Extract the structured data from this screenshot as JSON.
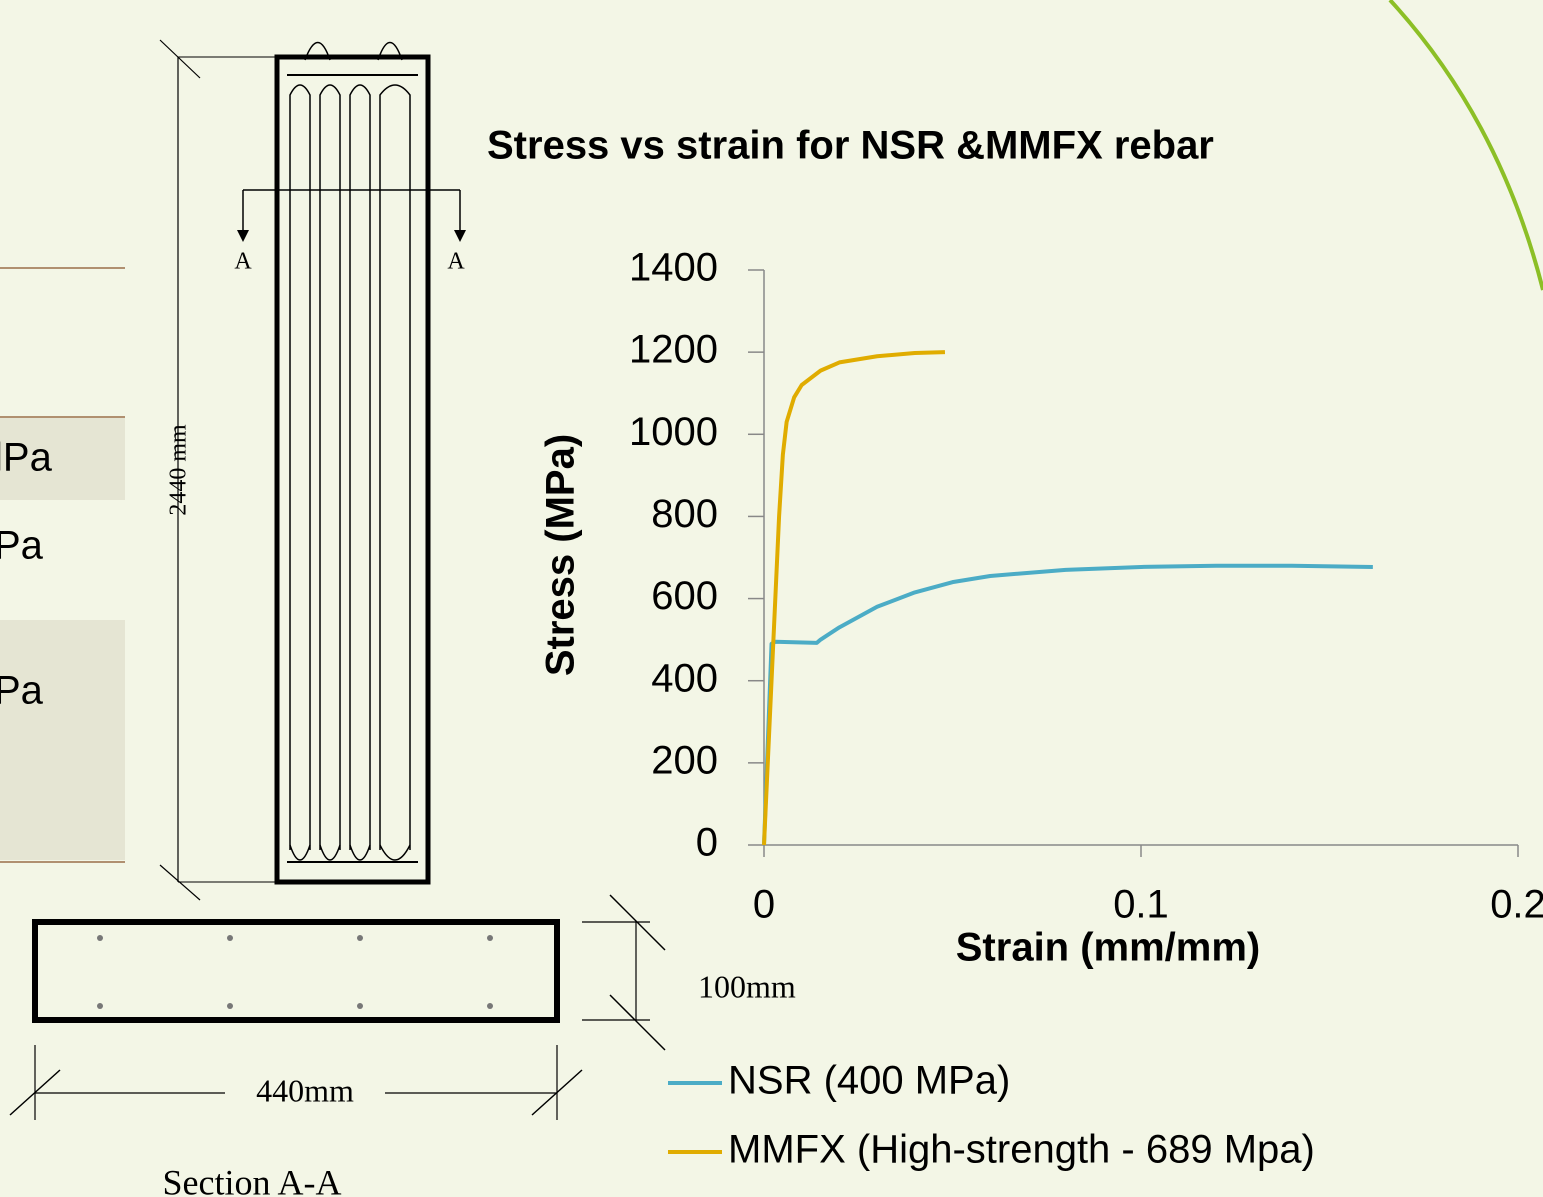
{
  "chart_data": {
    "type": "line",
    "title": "Stress vs strain for NSR &MMFX rebar",
    "xlabel": "Strain (mm/mm)",
    "ylabel": "Stress (MPa)",
    "xlim": [
      0,
      0.2
    ],
    "xticks": [
      0,
      0.1,
      0.2
    ],
    "ylim": [
      0,
      1400
    ],
    "yticks": [
      0,
      200,
      400,
      600,
      800,
      1000,
      1200,
      1400
    ],
    "grid": false,
    "legend": "bottom-left",
    "series": [
      {
        "name": "NSR (400 MPa)",
        "color": "#4bacc6",
        "x": [
          0,
          0.002,
          0.003,
          0.014,
          0.015,
          0.02,
          0.03,
          0.04,
          0.05,
          0.06,
          0.08,
          0.1,
          0.12,
          0.14,
          0.1615
        ],
        "values": [
          0,
          490,
          495,
          492,
          500,
          530,
          580,
          615,
          640,
          655,
          670,
          677,
          680,
          680,
          677
        ]
      },
      {
        "name": "MMFX (High-strength - 689 Mpa)",
        "color": "#e0ac00",
        "x": [
          0,
          0.002,
          0.004,
          0.005,
          0.006,
          0.008,
          0.01,
          0.015,
          0.02,
          0.03,
          0.04,
          0.048
        ],
        "values": [
          0,
          400,
          800,
          950,
          1030,
          1090,
          1120,
          1155,
          1175,
          1190,
          1198,
          1200
        ]
      }
    ]
  },
  "drawing": {
    "section_mark": "A",
    "height_label": "2440 mm",
    "depth_label": "100mm",
    "width_label": "440mm",
    "section_label": "Section A-A"
  },
  "table_fragments": [
    "lPa",
    "Pa",
    "Pa"
  ]
}
